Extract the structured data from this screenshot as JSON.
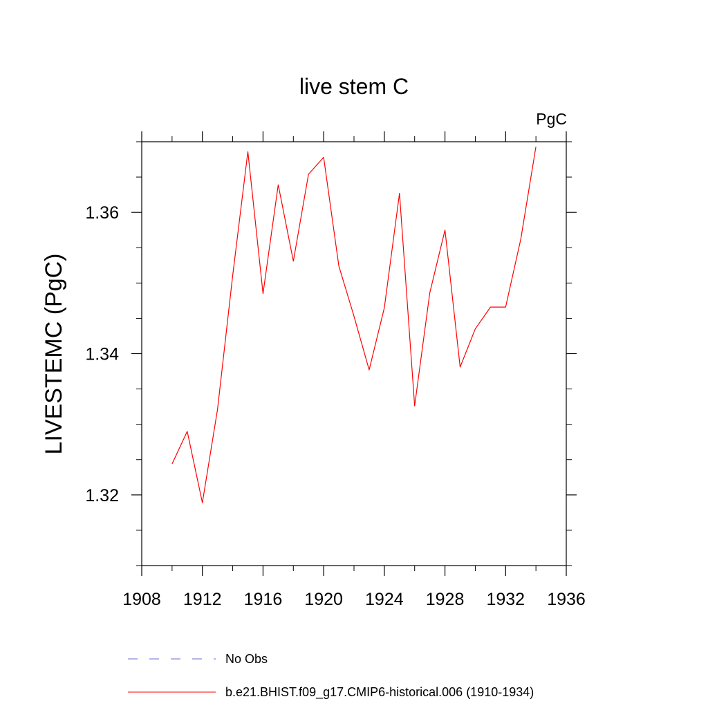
{
  "chart_data": {
    "type": "line",
    "title": "live stem C",
    "units_label": "PgC",
    "xlabel": "",
    "ylabel": "LIVESTEMC  (PgC)",
    "xlim": [
      1908,
      1936
    ],
    "ylim": [
      1.31,
      1.37
    ],
    "x_major_ticks": [
      1908,
      1912,
      1916,
      1920,
      1924,
      1928,
      1932,
      1936
    ],
    "x_tick_labels": [
      "1908",
      "1912",
      "1916",
      "1920",
      "1924",
      "1928",
      "1932",
      "1936"
    ],
    "x_minor_ticks": [
      1910,
      1914,
      1918,
      1922,
      1926,
      1930,
      1934
    ],
    "y_major_ticks": [
      1.32,
      1.34,
      1.36
    ],
    "y_tick_labels": [
      "1.32",
      "1.34",
      "1.36"
    ],
    "y_minor_ticks": [
      1.31,
      1.315,
      1.325,
      1.33,
      1.335,
      1.345,
      1.35,
      1.355,
      1.365,
      1.37
    ],
    "grid": false,
    "legend_position": "bottom",
    "series": [
      {
        "name": "b.e21.BHIST.f09_g17.CMIP6-historical.006 (1910-1934)",
        "color": "#ff0000",
        "style": "solid",
        "x": [
          1910,
          1911,
          1912,
          1913,
          1914,
          1915,
          1916,
          1917,
          1918,
          1919,
          1920,
          1921,
          1922,
          1923,
          1924,
          1925,
          1926,
          1927,
          1928,
          1929,
          1930,
          1931,
          1932,
          1933,
          1934
        ],
        "y": [
          1.3244,
          1.329,
          1.3189,
          1.3321,
          1.3511,
          1.3686,
          1.3485,
          1.3639,
          1.3531,
          1.3654,
          1.3678,
          1.3524,
          1.3453,
          1.3377,
          1.3465,
          1.3627,
          1.3326,
          1.3486,
          1.3575,
          1.3381,
          1.3435,
          1.3466,
          1.3466,
          1.3562,
          1.3693
        ]
      }
    ],
    "legend": [
      {
        "label": "No Obs",
        "color": "#6a6ad0",
        "style": "dashed"
      },
      {
        "label": "b.e21.BHIST.f09_g17.CMIP6-historical.006 (1910-1934)",
        "color": "#ff0000",
        "style": "solid"
      }
    ]
  }
}
